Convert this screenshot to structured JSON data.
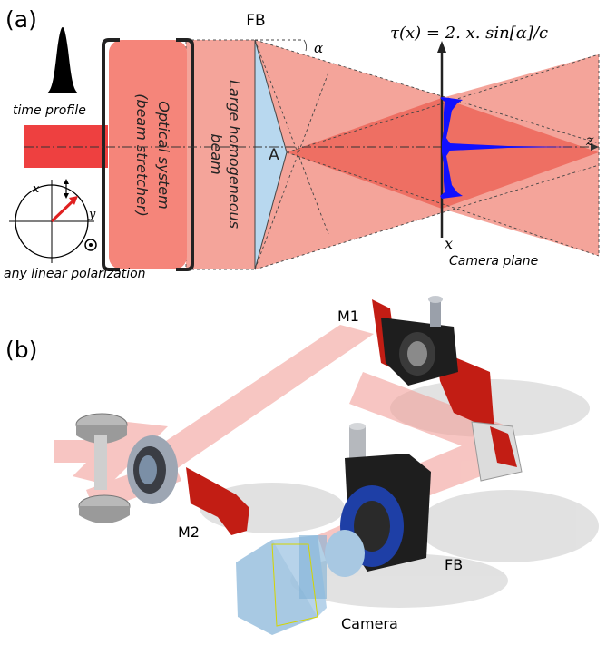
{
  "panel_a": {
    "label": "(a)",
    "time_profile_label": "time profile",
    "optical_system_line1": "Optical system",
    "optical_system_line2": "(beam stretcher)",
    "large_beam_line1": "Large homogeneous",
    "large_beam_line2": "beam",
    "fb_label": "FB",
    "alpha_label": "α",
    "a_label": "A",
    "formula": "τ(x) = 2. x. sin[α]/c",
    "z_label": "z",
    "x_label": "x",
    "camera_plane_label": "Camera plane",
    "x_axis_small": "x",
    "y_axis_small": "y",
    "polarization_label": "any linear polarization"
  },
  "panel_b": {
    "label": "(b)",
    "m1_label": "M1",
    "m2_label": "M2",
    "fb_label": "FB",
    "camera_label": "Camera"
  },
  "colors": {
    "beam": "#f4a49a",
    "beam_core": "#ee6f63",
    "laser": "#ee4040",
    "optics_box": "#f5857a",
    "axicon": "#b8d8ef",
    "trace": "#1010ff",
    "mount_red": "#c21d14",
    "mount_black": "#1e1e1e",
    "camera_blue": "#9ec3e0"
  }
}
